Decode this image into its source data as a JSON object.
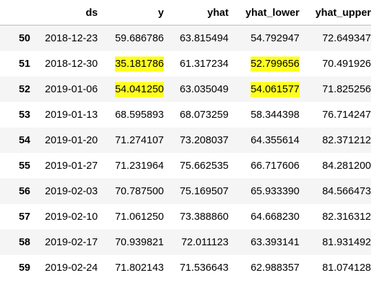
{
  "table": {
    "columns": [
      "",
      "ds",
      "y",
      "yhat",
      "yhat_lower",
      "yhat_upper"
    ],
    "rows": [
      {
        "index": "50",
        "ds": "2018-12-23",
        "y": "59.686786",
        "yhat": "63.815494",
        "yhat_lower": "54.792947",
        "yhat_upper": "72.649347"
      },
      {
        "index": "51",
        "ds": "2018-12-30",
        "y": "35.181786",
        "yhat": "61.317234",
        "yhat_lower": "52.799656",
        "yhat_upper": "70.491926"
      },
      {
        "index": "52",
        "ds": "2019-01-06",
        "y": "54.041250",
        "yhat": "63.035049",
        "yhat_lower": "54.061577",
        "yhat_upper": "71.825256"
      },
      {
        "index": "53",
        "ds": "2019-01-13",
        "y": "68.595893",
        "yhat": "68.073259",
        "yhat_lower": "58.344398",
        "yhat_upper": "76.714247"
      },
      {
        "index": "54",
        "ds": "2019-01-20",
        "y": "71.274107",
        "yhat": "73.208037",
        "yhat_lower": "64.355614",
        "yhat_upper": "82.371212"
      },
      {
        "index": "55",
        "ds": "2019-01-27",
        "y": "71.231964",
        "yhat": "75.662535",
        "yhat_lower": "66.717606",
        "yhat_upper": "84.281200"
      },
      {
        "index": "56",
        "ds": "2019-02-03",
        "y": "70.787500",
        "yhat": "75.169507",
        "yhat_lower": "65.933390",
        "yhat_upper": "84.566473"
      },
      {
        "index": "57",
        "ds": "2019-02-10",
        "y": "71.061250",
        "yhat": "73.388860",
        "yhat_lower": "64.668230",
        "yhat_upper": "82.316312"
      },
      {
        "index": "58",
        "ds": "2019-02-17",
        "y": "70.939821",
        "yhat": "72.011123",
        "yhat_lower": "63.393141",
        "yhat_upper": "81.931492"
      },
      {
        "index": "59",
        "ds": "2019-02-24",
        "y": "71.802143",
        "yhat": "71.536643",
        "yhat_lower": "62.988357",
        "yhat_upper": "81.074128"
      }
    ]
  },
  "colors": {
    "highlight": "#ffff1f",
    "stripe": "#f5f5f5",
    "header_rule": "#bdbdbd"
  }
}
